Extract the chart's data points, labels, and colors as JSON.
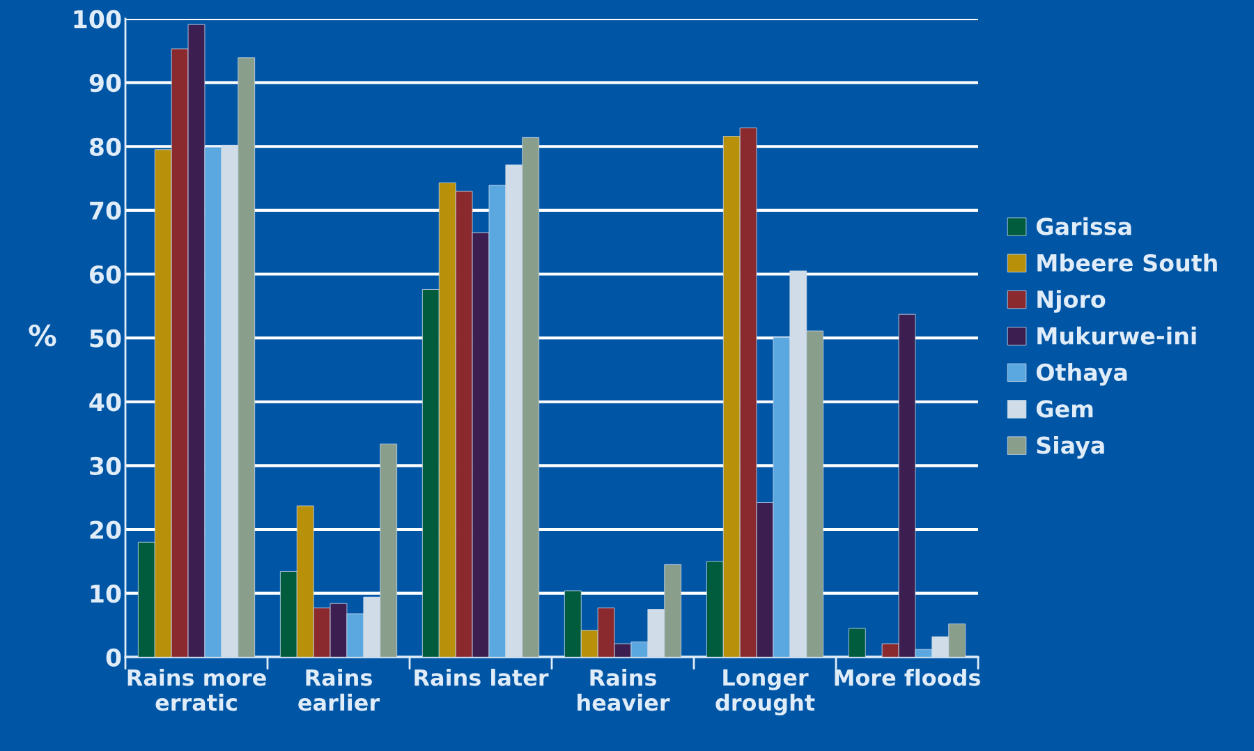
{
  "chart_data": {
    "type": "bar",
    "ylabel": "%",
    "categories": [
      "Rains more\nerratic",
      "Rains\nearlier",
      "Rains later",
      "Rains\nheavier",
      "Longer\ndrought",
      "More floods"
    ],
    "series": [
      {
        "name": "Garissa",
        "color": "#005c3c",
        "values": [
          18,
          13.4,
          57.6,
          10.4,
          15,
          4.5
        ]
      },
      {
        "name": "Mbeere South",
        "color": "#b8900a",
        "values": [
          79.5,
          23.7,
          74.3,
          4.2,
          81.6,
          null
        ]
      },
      {
        "name": "Njoro",
        "color": "#8b2a2e",
        "values": [
          95.3,
          7.7,
          73,
          7.7,
          82.9,
          2.1
        ]
      },
      {
        "name": "Mukurwe-ini",
        "color": "#3c1f50",
        "values": [
          99.1,
          8.4,
          66.5,
          2.1,
          24.2,
          53.7
        ]
      },
      {
        "name": "Othaya",
        "color": "#5ba8e0",
        "values": [
          79.9,
          6.8,
          73.9,
          2.4,
          50.1,
          1.2
        ]
      },
      {
        "name": "Gem",
        "color": "#d0dce8",
        "values": [
          80.2,
          9.4,
          77.1,
          7.5,
          60.5,
          3.2
        ]
      },
      {
        "name": "Siaya",
        "color": "#8a9e8c",
        "values": [
          93.9,
          33.4,
          81.4,
          14.5,
          51.1,
          5.2
        ]
      }
    ],
    "ylim": [
      0,
      100
    ],
    "yticks": [
      0,
      10,
      20,
      30,
      40,
      50,
      60,
      70,
      80,
      90,
      100
    ],
    "grid": "y",
    "legend": "right"
  }
}
